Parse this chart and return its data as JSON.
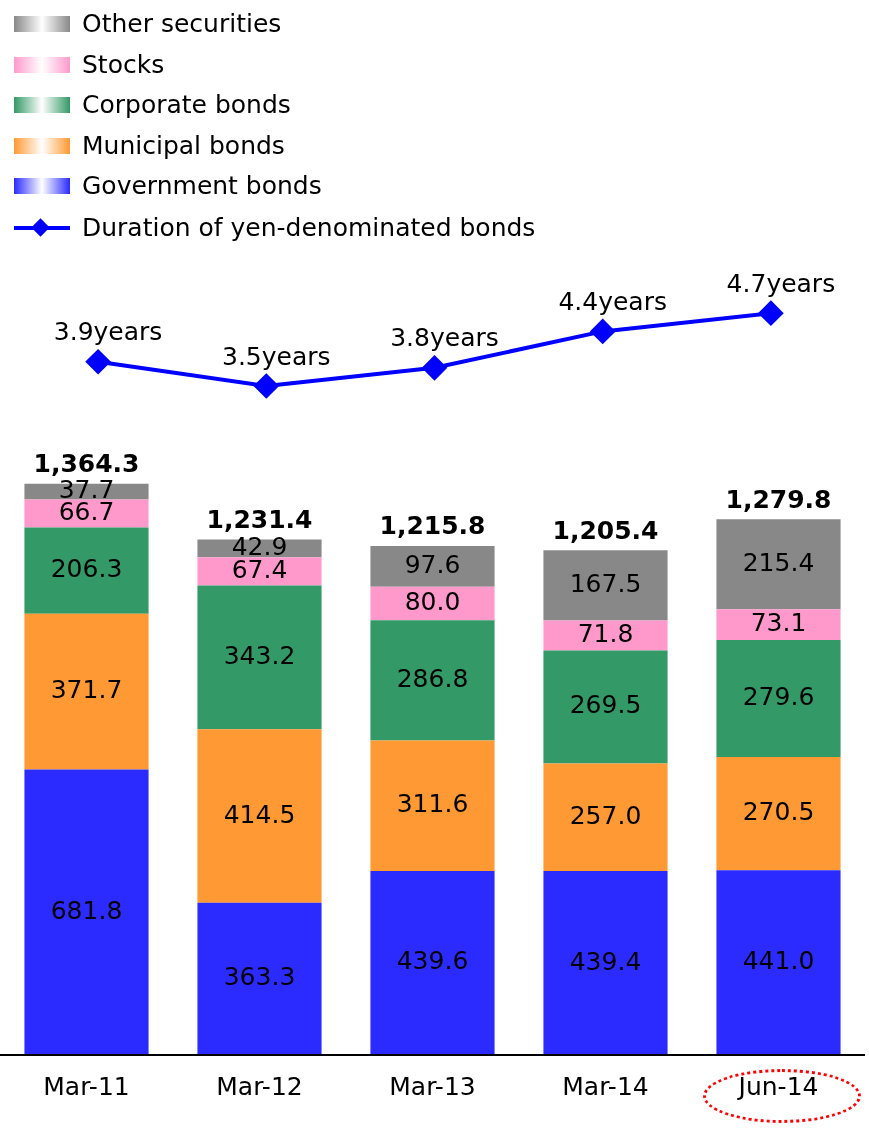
{
  "chart_data": [
    {
      "type": "line",
      "categories": [
        null,
        null,
        null,
        null,
        null
      ],
      "series": [
        {
          "name": "Duration of yen-denominated bonds",
          "color": "#0000ff",
          "values": [
            3.9,
            3.5,
            3.8,
            4.4,
            4.7
          ],
          "value_labels": [
            "3.9years",
            "3.5years",
            "3.8years",
            "4.4years",
            "4.7years"
          ]
        }
      ],
      "marker": "diamond",
      "legend": "top left",
      "tick_labels": false
    },
    {
      "type": "bar",
      "stacked": true,
      "categories": [
        "Mar-11",
        "Mar-12",
        "Mar-13",
        "Mar-14",
        "Jun-14"
      ],
      "series": [
        {
          "name": "Government bonds",
          "color": "#2b2bff",
          "values": [
            681.8,
            363.3,
            439.6,
            439.4,
            441.0
          ],
          "value_labels": [
            "681.8",
            "363.3",
            "439.6",
            "439.4",
            "441.0"
          ]
        },
        {
          "name": "Municipal bonds",
          "color": "#ff9933",
          "values": [
            371.7,
            414.5,
            311.6,
            257.0,
            270.5
          ],
          "value_labels": [
            "371.7",
            "414.5",
            "311.6",
            "257.0",
            "270.5"
          ]
        },
        {
          "name": "Corporate bonds",
          "color": "#339966",
          "values": [
            206.3,
            343.2,
            286.8,
            269.5,
            279.6
          ],
          "value_labels": [
            "206.3",
            "343.2",
            "286.8",
            "269.5",
            "279.6"
          ]
        },
        {
          "name": "Stocks",
          "color": "#ff99cc",
          "values": [
            66.7,
            67.4,
            80.0,
            71.8,
            73.1
          ],
          "value_labels": [
            "66.7",
            "67.4",
            "80.0",
            "71.8",
            "73.1"
          ]
        },
        {
          "name": "Other securities",
          "color": "#888888",
          "values": [
            37.7,
            42.9,
            97.6,
            167.5,
            215.4
          ],
          "value_labels": [
            "37.7",
            "42.9",
            "97.6",
            "167.5",
            "215.4"
          ]
        }
      ],
      "totals": [
        "1,364.3",
        "1,231.4",
        "1,215.8",
        "1,205.4",
        "1,279.8"
      ],
      "legend": "top left",
      "tick_labels": "x"
    }
  ]
}
